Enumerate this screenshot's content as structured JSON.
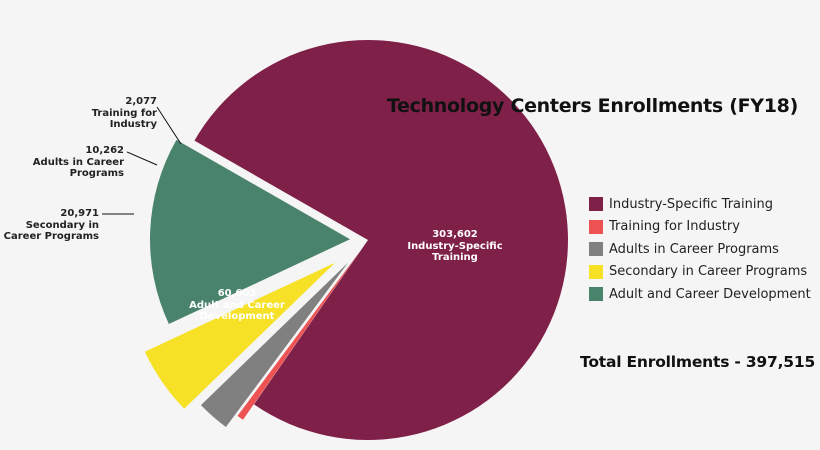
{
  "chart_data": {
    "type": "pie",
    "title": "Technology Centers Enrollments (FY18)",
    "total_label": "Total Enrollments - 397,515",
    "legend_placement": "right",
    "slices": [
      {
        "name": "Industry-Specific Training",
        "value": 303602,
        "value_label": "303,602",
        "label": "Industry-Specific Training",
        "color": "#7f2049",
        "exploded": false
      },
      {
        "name": "Training for Industry",
        "value": 2077,
        "value_label": "2,077",
        "label": "Training for Industry",
        "color": "#ee5253",
        "exploded": true
      },
      {
        "name": "Adults in Career Programs",
        "value": 10262,
        "value_label": "10,262",
        "label": "Adults in Career Programs",
        "color": "#808080",
        "exploded": true
      },
      {
        "name": "Secondary in Career Programs",
        "value": 20971,
        "value_label": "20,971",
        "label": "Secondary in Career Programs",
        "color": "#f7e126",
        "exploded": true
      },
      {
        "name": "Adult and Career Development",
        "value": 60603,
        "value_label": "60,603",
        "label": "Adult and Career Development",
        "color": "#4a836b",
        "exploded": true
      }
    ]
  }
}
